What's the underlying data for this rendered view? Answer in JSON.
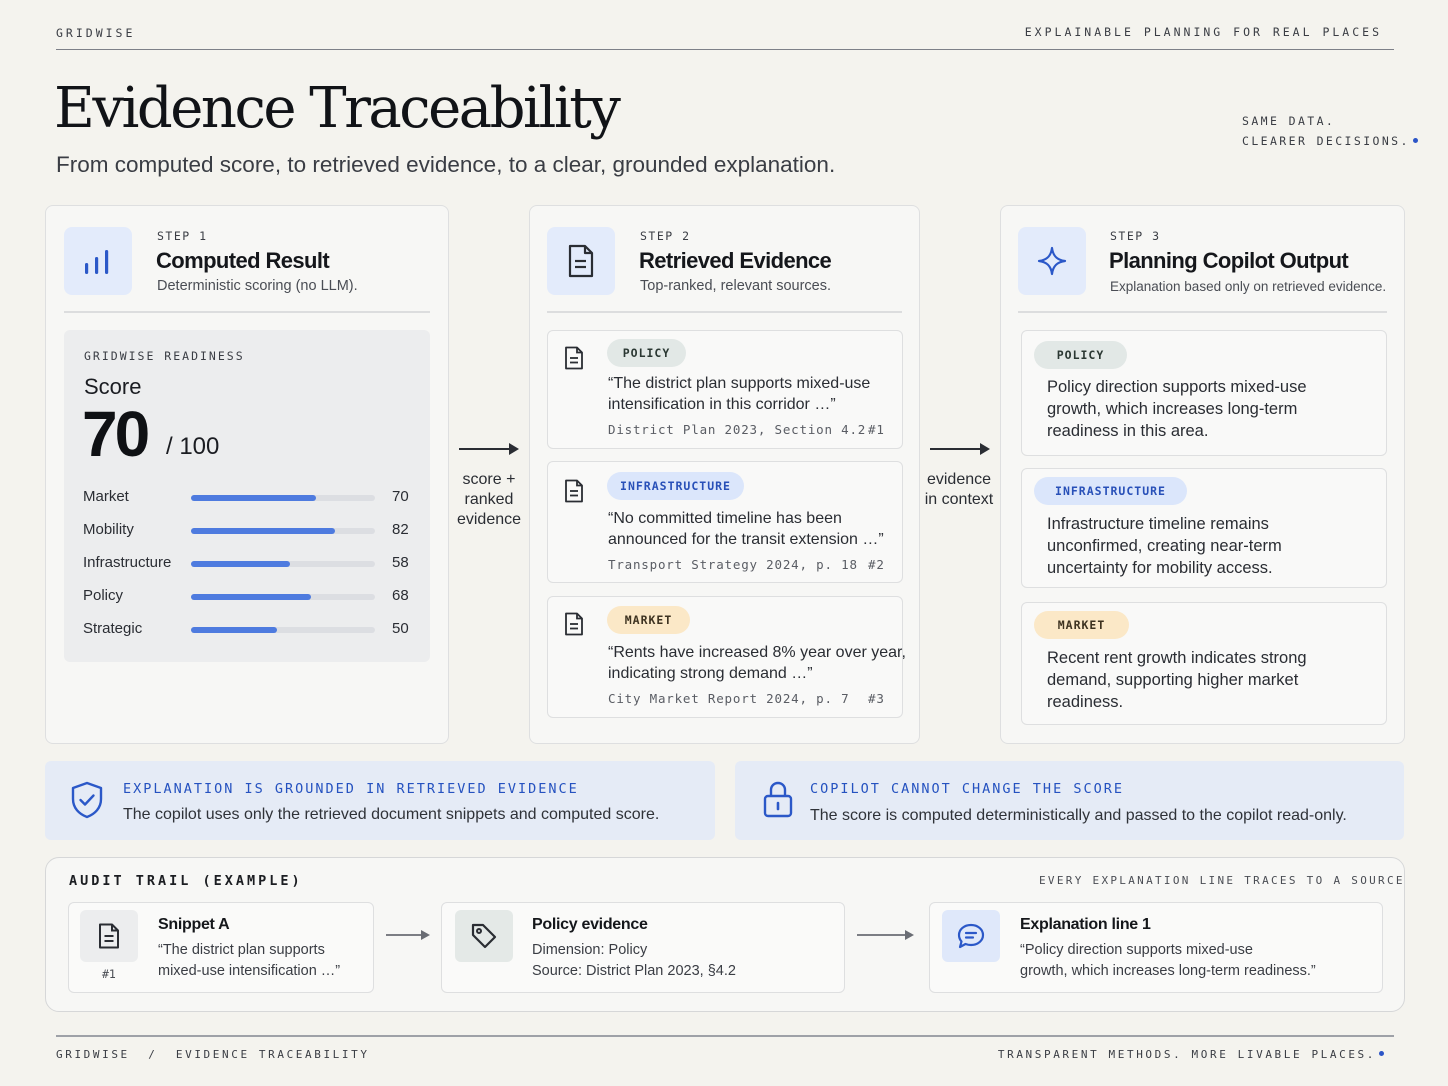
{
  "header": {
    "brand": "GRIDWISE",
    "tagline": "EXPLAINABLE PLANNING FOR REAL PLACES",
    "title": "Evidence Traceability",
    "subtitle": "From computed score, to retrieved evidence, to a clear, grounded explanation.",
    "side_note_1": "SAME DATA.",
    "side_note_2": "CLEARER DECISIONS."
  },
  "step1": {
    "step": "STEP 1",
    "title": "Computed Result",
    "desc": "Deterministic scoring (no LLM).",
    "icon": "bar-chart-icon",
    "panel_label": "GRIDWISE READINESS",
    "score_label": "Score",
    "score": "70",
    "score_max": "/ 100",
    "dimensions": [
      {
        "label": "Market",
        "value": "70",
        "fill": 0.68
      },
      {
        "label": "Mobility",
        "value": "82",
        "fill": 0.78
      },
      {
        "label": "Infrastructure",
        "value": "58",
        "fill": 0.54
      },
      {
        "label": "Policy",
        "value": "68",
        "fill": 0.65
      },
      {
        "label": "Strategic",
        "value": "50",
        "fill": 0.47
      }
    ]
  },
  "arrow1": {
    "line1": "score +",
    "line2": "ranked",
    "line3": "evidence"
  },
  "step2": {
    "step": "STEP 2",
    "title": "Retrieved Evidence",
    "desc": "Top-ranked, relevant sources.",
    "icon": "document-icon",
    "items": [
      {
        "tag": "POLICY",
        "q1": "“The district plan supports mixed-use",
        "q2": "intensification in this corridor …”",
        "source": "District Plan 2023, Section 4.2",
        "rank": "#1"
      },
      {
        "tag": "INFRASTRUCTURE",
        "q1": "“No committed timeline has been",
        "q2": "announced for the transit extension …”",
        "source": "Transport Strategy 2024, p. 18",
        "rank": "#2"
      },
      {
        "tag": "MARKET",
        "q1": "“Rents have increased 8% year over year,",
        "q2": "indicating strong demand …”",
        "source": "City Market Report 2024, p. 7",
        "rank": "#3"
      }
    ]
  },
  "arrow2": {
    "line1": "evidence",
    "line2": "in context"
  },
  "step3": {
    "step": "STEP 3",
    "title": "Planning Copilot Output",
    "desc": "Explanation based only on retrieved evidence.",
    "icon": "sparkle-icon",
    "items": [
      {
        "tag": "POLICY",
        "l1": "Policy direction supports mixed-use",
        "l2": "growth, which increases long-term",
        "l3": "readiness in this area."
      },
      {
        "tag": "INFRASTRUCTURE",
        "l1": "Infrastructure timeline remains",
        "l2": "unconfirmed, creating near-term",
        "l3": "uncertainty for mobility access."
      },
      {
        "tag": "MARKET",
        "l1": "Recent rent growth indicates strong",
        "l2": "demand, supporting higher market",
        "l3": "readiness."
      }
    ]
  },
  "info": {
    "grounded_title": "EXPLANATION IS GROUNDED IN RETRIEVED EVIDENCE",
    "grounded_text": "The copilot uses only the retrieved document snippets and computed score.",
    "locked_title": "COPILOT CANNOT CHANGE THE SCORE",
    "locked_text": "The score is computed deterministically and passed to the copilot read-only."
  },
  "audit": {
    "title": "AUDIT TRAIL (EXAMPLE)",
    "note": "EVERY EXPLANATION LINE TRACES TO A SOURCE",
    "snippet": {
      "head": "Snippet A",
      "b1": "“The district plan supports",
      "b2": "mixed-use intensification …”",
      "rank": "#1"
    },
    "evidence": {
      "head": "Policy evidence",
      "b1": "Dimension: Policy",
      "b2": "Source: District Plan 2023, §4.2"
    },
    "explanation": {
      "head": "Explanation line 1",
      "b1": "“Policy direction supports mixed-use",
      "b2": "growth, which increases long-term readiness.”"
    }
  },
  "footer": {
    "left": "GRIDWISE  /  EVIDENCE TRACEABILITY",
    "right": "TRANSPARENT METHODS. MORE LIVABLE PLACES."
  },
  "colors": {
    "accent": "#2c55c7",
    "bar": "#4e7bdf",
    "icon_bg": "#e3ebfb",
    "info_bg": "#e5ebf6"
  }
}
